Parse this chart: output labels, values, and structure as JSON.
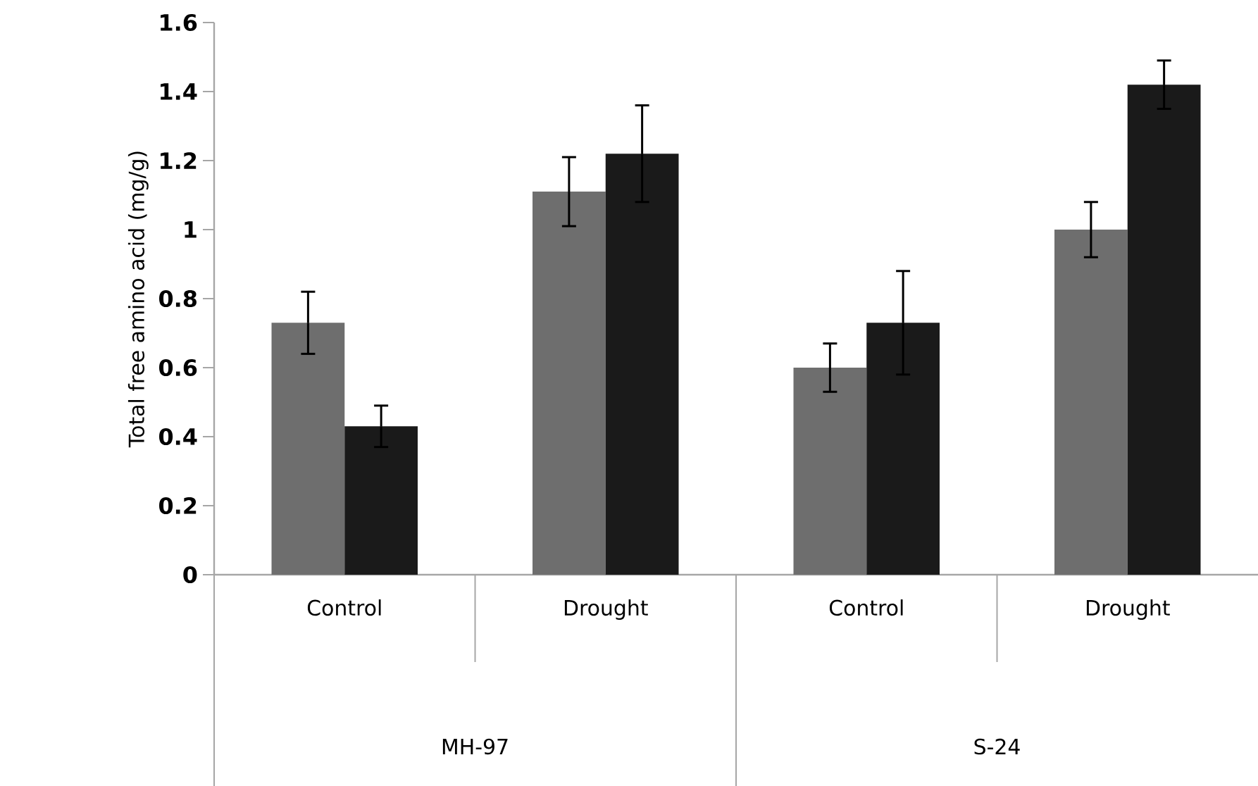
{
  "chart_data": {
    "type": "bar",
    "ylabel": "Total free amino acid (mg/g)",
    "categories": [
      "Control",
      "Drought",
      "Control",
      "Drought"
    ],
    "series": [
      {
        "color": "#6e6e6e",
        "values": [
          0.73,
          1.11,
          0.6,
          1.0
        ],
        "errors": [
          0.09,
          0.1,
          0.07,
          0.08
        ]
      },
      {
        "color": "#1a1a1a",
        "values": [
          0.43,
          1.22,
          0.73,
          1.42
        ],
        "errors": [
          0.06,
          0.14,
          0.15,
          0.07
        ]
      }
    ],
    "annotations": [
      "MH-97",
      "S-24"
    ],
    "ylim": [
      0,
      1.6
    ],
    "yticks": [
      0,
      0.2,
      0.4,
      0.6,
      0.8,
      1,
      1.2,
      1.4,
      1.6
    ]
  }
}
